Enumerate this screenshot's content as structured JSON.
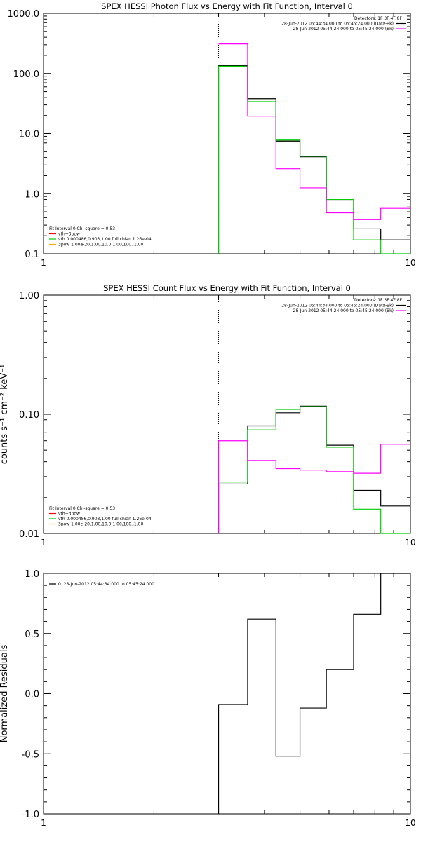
{
  "chart_data": [
    {
      "type": "line",
      "title": "SPEX HESSI Photon Flux vs Energy with Fit Function, Interval 0",
      "xlabel": "",
      "ylabel": "",
      "xscale": "log",
      "yscale": "log",
      "xlim": [
        1,
        10
      ],
      "ylim": [
        0.1,
        1000
      ],
      "x_ticks": [
        "1",
        "10"
      ],
      "y_ticks": [
        "0.1",
        "1.0",
        "10.0",
        "100.0",
        "1000.0"
      ],
      "vline_x": 3,
      "legend_top_right": [
        "Detectors: 1F 3F 4F 8F",
        "28-Jun-2012 05:44:34.000 to 05:45:24.000 (Data-Bk)",
        "28-Jun-2012 05:44:24.000 to 05:45:24.000 (Bk)"
      ],
      "legend_bottom_left": [
        "Fit Interval 0   Chi-square = 0.53",
        "vth+3pow",
        "vth 0.000486,0.903,1.00  full chian 1.26e-04",
        "3pow 1.00e-20,1.00,10.0,1.00,100.,1.00"
      ],
      "legend_colors": [
        "#000000",
        "#ff00ff"
      ],
      "fit_legend_colors": [
        "#000000",
        "#ff0000",
        "#00cc00",
        "#ffaa00"
      ],
      "bin_edges": [
        3.0,
        3.6,
        4.3,
        5.0,
        5.9,
        7.0,
        8.3,
        10.0
      ],
      "series": [
        {
          "name": "28-Jun-2012 05:44:34.000 to 05:45:24.000 (Data-Bk)",
          "color": "#000000",
          "drop_to": 0.1,
          "values": [
            135,
            38,
            7.5,
            4.1,
            0.78,
            0.26,
            0.17
          ]
        },
        {
          "name": "",
          "color": "#00cc00",
          "drop_to": 0.1,
          "values": [
            132,
            34,
            7.8,
            4.2,
            0.8,
            0.17,
            0.07
          ]
        },
        {
          "name": "28-Jun-2012 05:44:24.000 to 05:45:24.000 (Bk)",
          "color": "#ff00ff",
          "drop_to": null,
          "values": [
            310,
            19.5,
            2.6,
            1.25,
            0.48,
            0.37,
            0.57
          ]
        }
      ]
    },
    {
      "type": "line",
      "title": "SPEX HESSI Count Flux vs Energy with Fit Function, Interval 0",
      "xlabel": "",
      "ylabel": "counts s⁻¹ cm⁻² keV⁻¹",
      "xscale": "log",
      "yscale": "log",
      "xlim": [
        1,
        10
      ],
      "ylim": [
        0.01,
        1.0
      ],
      "x_ticks": [
        "1",
        "10"
      ],
      "y_ticks": [
        "0.01",
        "0.10",
        "1.00"
      ],
      "vline_x": 3,
      "legend_top_right": [
        "Detectors: 1F 3F 4F 8F",
        "28-Jun-2012 05:44:34.000 to 05:45:24.000 (Data-Bk)",
        "28-Jun-2012 05:44:24.000 to 05:45:24.000 (Bk)"
      ],
      "legend_bottom_left": [
        "Fit Interval 0   Chi-square = 0.53",
        "vth+3pow",
        "vth 0.000486,0.903,1.00  full chian 1.26e-04",
        "3pow 1.00e-20,1.00,10.0,1.00,100.,1.00"
      ],
      "legend_colors": [
        "#000000",
        "#ff00ff"
      ],
      "fit_legend_colors": [
        "#000000",
        "#ff0000",
        "#00cc00",
        "#ffaa00"
      ],
      "bin_edges": [
        3.0,
        3.6,
        4.3,
        5.0,
        5.9,
        7.0,
        8.3,
        10.0
      ],
      "series": [
        {
          "name": "28-Jun-2012 05:44:34.000 to 05:45:24.000 (Data-Bk)",
          "color": "#000000",
          "drop_to": 0.01,
          "values": [
            0.026,
            0.08,
            0.103,
            0.117,
            0.055,
            0.023,
            0.017
          ]
        },
        {
          "name": "",
          "color": "#00cc00",
          "drop_to": 0.01,
          "values": [
            0.027,
            0.074,
            0.11,
            0.116,
            0.053,
            0.016,
            0.008
          ]
        },
        {
          "name": "28-Jun-2012 05:44:24.000 to 05:45:24.000 (Bk)",
          "color": "#ff00ff",
          "drop_to": 0.01,
          "values": [
            0.06,
            0.041,
            0.035,
            0.034,
            0.033,
            0.032,
            0.056
          ]
        }
      ]
    },
    {
      "type": "line",
      "title": "",
      "xlabel": "",
      "ylabel": "Normalized Residuals",
      "xscale": "log",
      "yscale": "linear",
      "xlim": [
        1,
        10
      ],
      "ylim": [
        -1.0,
        1.0
      ],
      "x_ticks": [
        "1",
        "10"
      ],
      "y_ticks": [
        "-1.0",
        "-0.5",
        "0.0",
        "0.5",
        "1.0"
      ],
      "legend_top_left": [
        "0. 28-Jun-2012 05:44:34.000 to 05:45:24.000"
      ],
      "bin_edges": [
        3.0,
        3.6,
        4.3,
        5.0,
        5.9,
        7.0,
        8.3,
        9.4,
        10.0
      ],
      "series": [
        {
          "name": "0. 28-Jun-2012 05:44:34.000 to 05:45:24.000",
          "color": "#000000",
          "drop_to": -1.0,
          "values": [
            -0.09,
            0.62,
            -0.52,
            -0.12,
            0.2,
            0.66,
            1.0,
            1.0
          ]
        }
      ]
    }
  ]
}
